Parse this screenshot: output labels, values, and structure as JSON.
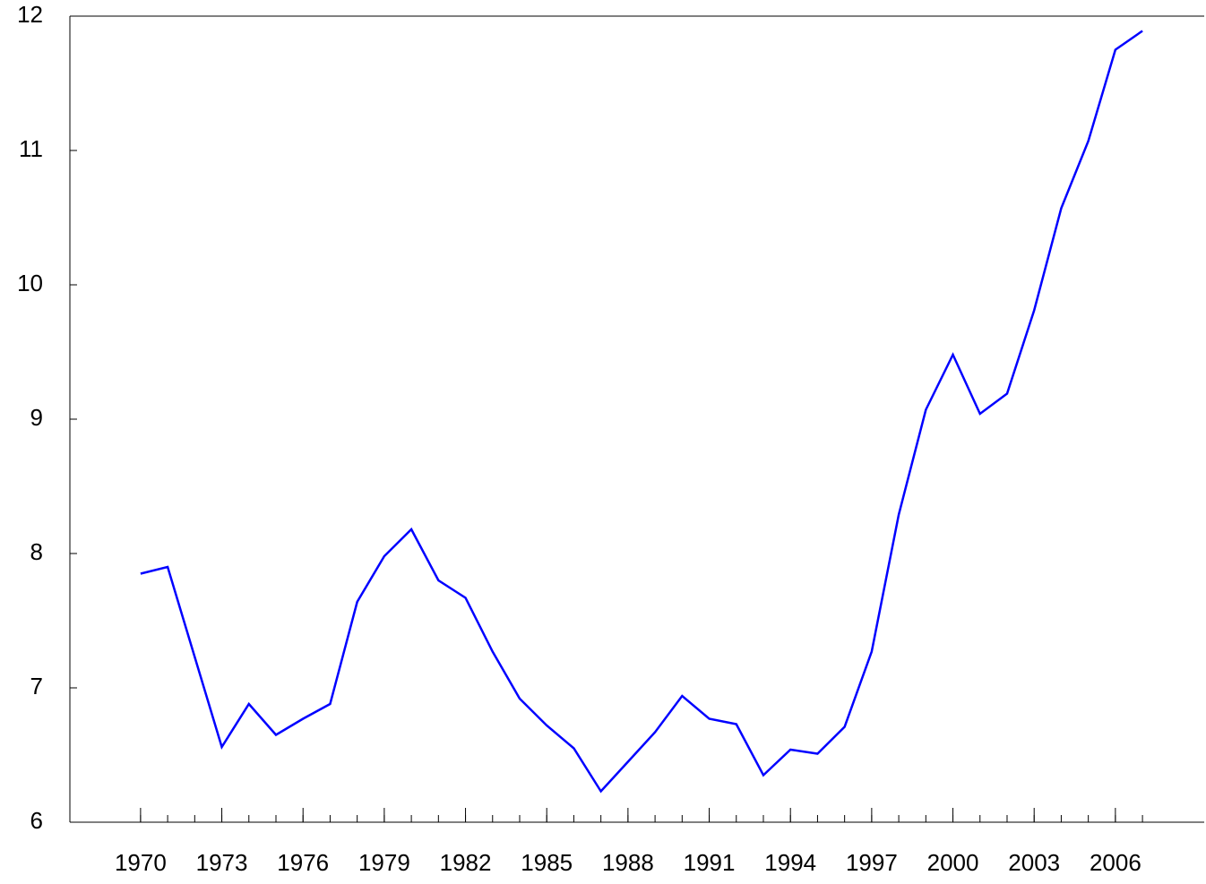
{
  "chart_data": {
    "type": "line",
    "x": [
      1970,
      1971,
      1972,
      1973,
      1974,
      1975,
      1976,
      1977,
      1978,
      1979,
      1980,
      1981,
      1982,
      1983,
      1984,
      1985,
      1986,
      1987,
      1988,
      1989,
      1990,
      1991,
      1992,
      1993,
      1994,
      1995,
      1996,
      1997,
      1998,
      1999,
      2000,
      2001,
      2002,
      2003,
      2004,
      2005,
      2006,
      2007
    ],
    "series": [
      {
        "color": "#0000ff",
        "values": [
          7.85,
          7.9,
          7.23,
          6.56,
          6.88,
          6.65,
          6.77,
          6.88,
          7.64,
          7.98,
          8.18,
          7.8,
          7.67,
          7.27,
          6.92,
          6.72,
          6.55,
          6.23,
          6.45,
          6.67,
          6.94,
          6.77,
          6.73,
          6.35,
          6.54,
          6.51,
          6.71,
          7.27,
          8.29,
          9.07,
          9.48,
          9.04,
          9.19,
          9.81,
          10.57,
          11.07,
          11.75,
          11.89
        ]
      }
    ],
    "xlim": [
      1967.39,
      2009.28
    ],
    "xticks": [
      1970,
      1973,
      1976,
      1979,
      1982,
      1985,
      1988,
      1991,
      1994,
      1997,
      2000,
      2003,
      2006
    ],
    "minor_xticks": [
      1970,
      1971,
      1972,
      1973,
      1974,
      1975,
      1976,
      1977,
      1978,
      1979,
      1980,
      1981,
      1982,
      1983,
      1984,
      1985,
      1986,
      1987,
      1988,
      1989,
      1990,
      1991,
      1992,
      1993,
      1994,
      1995,
      1996,
      1997,
      1998,
      1999,
      2000,
      2001,
      2002,
      2003,
      2004,
      2005,
      2006,
      2007
    ],
    "ylim": [
      6,
      12
    ],
    "yticks": [
      6,
      7,
      8,
      9,
      10,
      11,
      12
    ]
  }
}
